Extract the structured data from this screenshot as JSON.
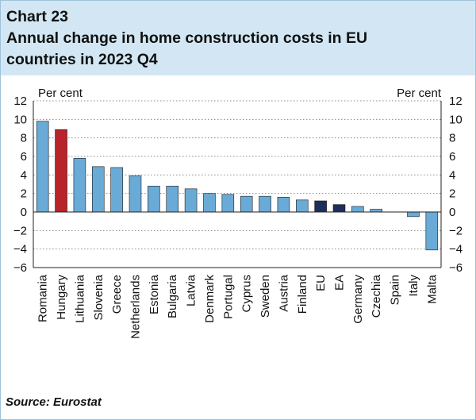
{
  "chart_data": {
    "type": "bar",
    "chart_label": "Chart 23",
    "title_line1": "Annual change in home construction costs in EU",
    "title_line2": "countries in 2023 Q4",
    "ylabel_left": "Per cent",
    "ylabel_right": "Per cent",
    "ylim": [
      -6,
      12
    ],
    "yticks": [
      12,
      10,
      8,
      6,
      4,
      2,
      0,
      -2,
      -4,
      -6
    ],
    "ytick_labels": [
      "12",
      "10",
      "8",
      "6",
      "4",
      "2",
      "0",
      "−2",
      "−4",
      "−6"
    ],
    "grid": true,
    "categories": [
      "Romania",
      "Hungary",
      "Lithuania",
      "Slovenia",
      "Greece",
      "Netherlands",
      "Estonia",
      "Bulgaria",
      "Latvia",
      "Denmark",
      "Portugal",
      "Cyprus",
      "Sweden",
      "Austria",
      "Finland",
      "EU",
      "EA",
      "Germany",
      "Czechia",
      "Spain",
      "Italy",
      "Malta"
    ],
    "values": [
      9.8,
      8.9,
      5.8,
      4.9,
      4.8,
      3.9,
      2.8,
      2.8,
      2.5,
      2.0,
      1.9,
      1.7,
      1.7,
      1.6,
      1.3,
      1.2,
      0.8,
      0.6,
      0.3,
      0.0,
      -0.5,
      -4.1
    ],
    "bar_colors": [
      "#6aaad6",
      "#b7242a",
      "#6aaad6",
      "#6aaad6",
      "#6aaad6",
      "#6aaad6",
      "#6aaad6",
      "#6aaad6",
      "#6aaad6",
      "#6aaad6",
      "#6aaad6",
      "#6aaad6",
      "#6aaad6",
      "#6aaad6",
      "#6aaad6",
      "#1c2e5a",
      "#1c2e5a",
      "#6aaad6",
      "#6aaad6",
      "#6aaad6",
      "#6aaad6",
      "#6aaad6"
    ]
  },
  "source": "Source: Eurostat",
  "colors": {
    "header_bg": "#d2e7f3",
    "highlight": "#b7242a",
    "aggregate": "#1c2e5a",
    "default_bar": "#6aaad6"
  }
}
